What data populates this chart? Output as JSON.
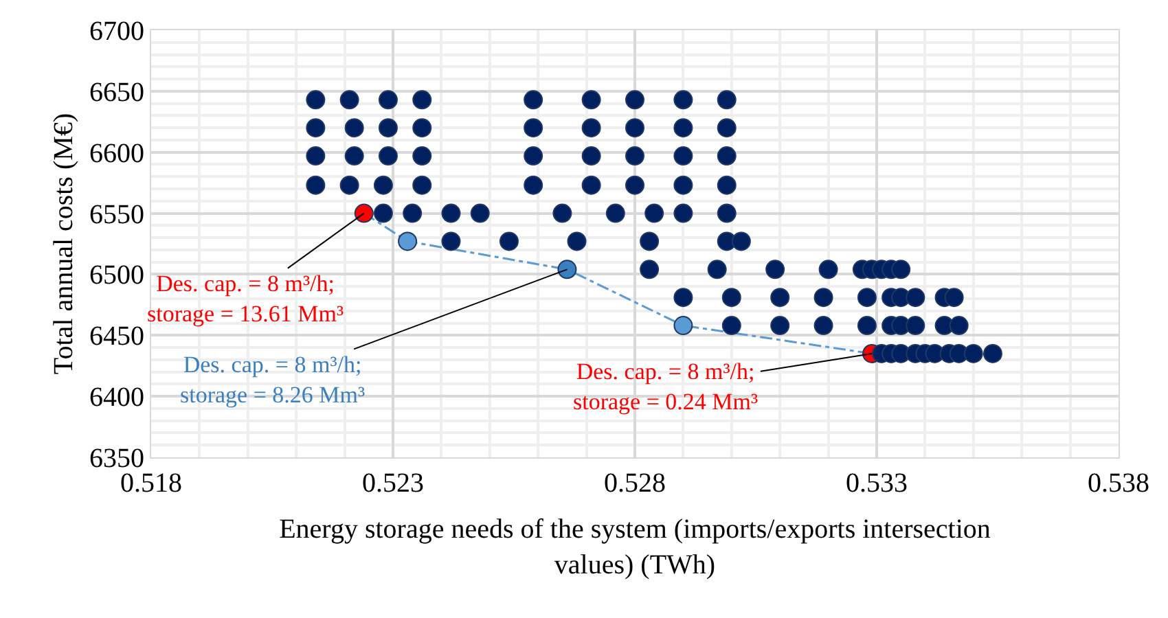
{
  "chart_data": {
    "type": "scatter",
    "xlabel": "Energy storage needs of the system (imports/exports intersection values) (TWh)",
    "ylabel": "Total annual costs (M€)",
    "xlim": [
      0.518,
      0.538
    ],
    "xticks": [
      0.518,
      0.523,
      0.528,
      0.533,
      0.538
    ],
    "ylim": [
      6350,
      6700
    ],
    "yticks": [
      6350,
      6400,
      6450,
      6500,
      6550,
      6600,
      6650,
      6700
    ],
    "grid": true,
    "marker": "circle",
    "series": [
      {
        "color": "#002060",
        "x": [
          0.5214,
          0.5221,
          0.5229,
          0.5236,
          0.5259,
          0.5271,
          0.528,
          0.529,
          0.5299,
          0.5214,
          0.5222,
          0.5229,
          0.5236,
          0.5259,
          0.5271,
          0.528,
          0.529,
          0.5299,
          0.5214,
          0.5222,
          0.5229,
          0.5236,
          0.5259,
          0.5271,
          0.528,
          0.529,
          0.5299,
          0.5214,
          0.5221,
          0.5228,
          0.5236,
          0.5259,
          0.5271,
          0.528,
          0.529,
          0.5299,
          0.5228,
          0.5234,
          0.5242,
          0.5248,
          0.5265,
          0.5276,
          0.5284,
          0.529,
          0.5299,
          0.5242,
          0.5254,
          0.5268,
          0.5283,
          0.5299,
          0.5302,
          0.5283,
          0.5297,
          0.5309,
          0.532,
          0.5327,
          0.5329,
          0.5331,
          0.5333,
          0.5335,
          0.529,
          0.53,
          0.531,
          0.5319,
          0.5328,
          0.5333,
          0.5335,
          0.5338,
          0.5344,
          0.5346,
          0.53,
          0.531,
          0.5319,
          0.5328,
          0.5333,
          0.5335,
          0.5338,
          0.5344,
          0.5347,
          0.5331,
          0.5333,
          0.5335,
          0.5338,
          0.534,
          0.5342,
          0.5345,
          0.5347,
          0.535,
          0.5354
        ],
        "values": [
          6643,
          6643,
          6643,
          6643,
          6643,
          6643,
          6643,
          6643,
          6643,
          6620,
          6620,
          6620,
          6620,
          6620,
          6620,
          6620,
          6620,
          6620,
          6597,
          6597,
          6597,
          6597,
          6597,
          6597,
          6597,
          6597,
          6597,
          6573,
          6573,
          6573,
          6573,
          6573,
          6573,
          6573,
          6573,
          6573,
          6550,
          6550,
          6550,
          6550,
          6550,
          6550,
          6550,
          6550,
          6550,
          6527,
          6527,
          6527,
          6527,
          6527,
          6527,
          6504,
          6504,
          6504,
          6504,
          6504,
          6504,
          6504,
          6504,
          6504,
          6481,
          6481,
          6481,
          6481,
          6481,
          6481,
          6481,
          6481,
          6481,
          6481,
          6458,
          6458,
          6458,
          6458,
          6458,
          6458,
          6458,
          6458,
          6458,
          6435,
          6435,
          6435,
          6435,
          6435,
          6435,
          6435,
          6435,
          6435,
          6435
        ]
      },
      {
        "type": "line",
        "color": "#5b9bd5",
        "line_style": "dashed",
        "colors": [
          "#ff0000",
          "#5b9bd5",
          "#3a7fc0",
          "#5b9bd5",
          "#ff0000"
        ],
        "x": [
          0.5224,
          0.5233,
          0.5266,
          0.529,
          0.5329
        ],
        "values": [
          6550,
          6527,
          6504,
          6458,
          6435
        ]
      }
    ],
    "annotations": [
      {
        "text": "Des. cap. = 8 m³/h;\nstorage = 13.61 Mm³",
        "x": 0.5224,
        "y": 6550
      },
      {
        "text": "Des. cap. = 8 m³/h;\nstorage = 8.26 Mm³",
        "x": 0.5266,
        "y": 6504
      },
      {
        "text": "Des. cap. = 8 m³/h;\nstorage = 0.24 Mm³",
        "x": 0.5329,
        "y": 6435
      }
    ]
  }
}
